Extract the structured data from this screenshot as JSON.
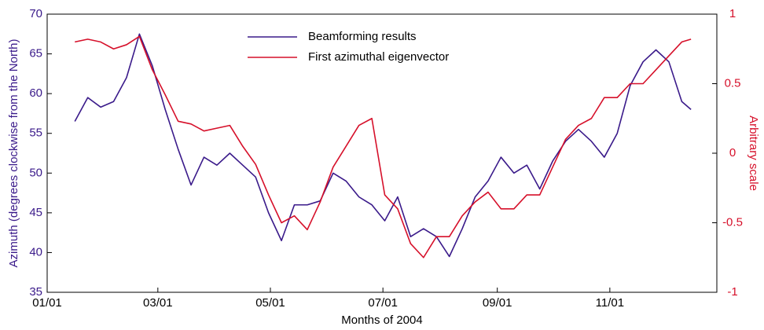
{
  "chart_data": {
    "type": "line",
    "x_label": "Months of 2004",
    "y_label": "Azimuth (degrees clockwise from the North)",
    "y2_label": "Arbitrary scale",
    "x": [
      "2004-01-16",
      "2004-01-23",
      "2004-01-30",
      "2004-02-06",
      "2004-02-13",
      "2004-02-20",
      "2004-02-27",
      "2004-03-05",
      "2004-03-12",
      "2004-03-19",
      "2004-03-26",
      "2004-04-02",
      "2004-04-09",
      "2004-04-16",
      "2004-04-23",
      "2004-04-30",
      "2004-05-07",
      "2004-05-14",
      "2004-05-21",
      "2004-05-28",
      "2004-06-04",
      "2004-06-11",
      "2004-06-18",
      "2004-06-25",
      "2004-07-02",
      "2004-07-09",
      "2004-07-16",
      "2004-07-23",
      "2004-07-30",
      "2004-08-06",
      "2004-08-13",
      "2004-08-20",
      "2004-08-27",
      "2004-09-03",
      "2004-09-10",
      "2004-09-17",
      "2004-09-24",
      "2004-10-01",
      "2004-10-08",
      "2004-10-15",
      "2004-10-22",
      "2004-10-29",
      "2004-11-05",
      "2004-11-12",
      "2004-11-19",
      "2004-11-26",
      "2004-12-03",
      "2004-12-10",
      "2004-12-15"
    ],
    "series": [
      {
        "name": "Beamforming results",
        "color": "#3a1a8a",
        "axis": "y",
        "values": [
          56.5,
          59.5,
          58.3,
          59,
          62,
          67.5,
          63.5,
          58,
          53,
          48.5,
          52,
          51,
          52.5,
          51,
          49.5,
          45,
          41.5,
          46,
          46,
          46.5,
          50,
          49,
          47,
          46,
          44,
          47,
          42,
          43,
          42,
          39.5,
          43,
          47,
          49,
          52,
          50,
          51,
          48,
          51.5,
          54,
          55.5,
          54,
          52,
          55,
          61,
          64,
          65.5,
          64,
          59,
          58
        ]
      },
      {
        "name": "First azimuthal eigenvector",
        "color": "#d6102a",
        "axis": "y2",
        "values": [
          0.8,
          0.82,
          0.8,
          0.75,
          0.78,
          0.84,
          0.6,
          0.42,
          0.23,
          0.21,
          0.16,
          0.18,
          0.2,
          0.05,
          -0.08,
          -0.3,
          -0.5,
          -0.45,
          -0.55,
          -0.35,
          -0.1,
          0.05,
          0.2,
          0.25,
          -0.3,
          -0.4,
          -0.65,
          -0.75,
          -0.6,
          -0.6,
          -0.45,
          -0.35,
          -0.28,
          -0.4,
          -0.4,
          -0.3,
          -0.3,
          -0.1,
          0.1,
          0.2,
          0.25,
          0.4,
          0.4,
          0.5,
          0.5,
          0.6,
          0.7,
          0.8,
          0.82
        ]
      }
    ],
    "xlim": [
      "2004-01-01",
      "2004-12-29"
    ],
    "xticks": [
      {
        "value": "2004-01-01",
        "label": "01/01"
      },
      {
        "value": "2004-03-01",
        "label": "03/01"
      },
      {
        "value": "2004-05-01",
        "label": "05/01"
      },
      {
        "value": "2004-07-01",
        "label": "07/01"
      },
      {
        "value": "2004-09-01",
        "label": "09/01"
      },
      {
        "value": "2004-11-01",
        "label": "11/01"
      }
    ],
    "ylim": [
      35,
      70
    ],
    "yticks": [
      35,
      40,
      45,
      50,
      55,
      60,
      65,
      70
    ],
    "y2lim": [
      -1,
      1
    ],
    "y2ticks": [
      -1,
      -0.5,
      0,
      0.5,
      1
    ],
    "grid": false,
    "legend": "top"
  }
}
